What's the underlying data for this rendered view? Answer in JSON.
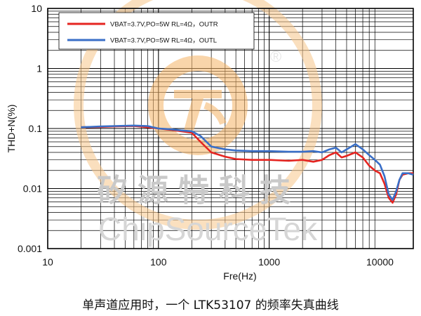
{
  "chart_data": {
    "type": "line",
    "xlabel": "Fre(Hz)",
    "ylabel": "THD+N(%)",
    "xscale": "log",
    "yscale": "log",
    "xlim": [
      10,
      20000
    ],
    "ylim": [
      0.001,
      10
    ],
    "x_ticks": [
      "10",
      "100",
      "1000",
      "10000"
    ],
    "y_ticks": [
      "0.001",
      "0.01",
      "0.1",
      "1",
      "10"
    ],
    "grid": true,
    "legend_position": "top-left",
    "series": [
      {
        "name": "VBAT=3.7V,PO=5W  RL=4Ω，OUTR",
        "color": "#e52521",
        "points": [
          [
            20,
            0.105
          ],
          [
            30,
            0.106
          ],
          [
            40,
            0.108
          ],
          [
            60,
            0.11
          ],
          [
            80,
            0.105
          ],
          [
            100,
            0.1
          ],
          [
            130,
            0.095
          ],
          [
            160,
            0.09
          ],
          [
            200,
            0.085
          ],
          [
            240,
            0.06
          ],
          [
            300,
            0.04
          ],
          [
            400,
            0.034
          ],
          [
            500,
            0.031
          ],
          [
            700,
            0.03
          ],
          [
            1000,
            0.03
          ],
          [
            1500,
            0.029
          ],
          [
            2000,
            0.03
          ],
          [
            2500,
            0.028
          ],
          [
            3000,
            0.03
          ],
          [
            3500,
            0.036
          ],
          [
            4000,
            0.04
          ],
          [
            4500,
            0.033
          ],
          [
            5000,
            0.035
          ],
          [
            6000,
            0.04
          ],
          [
            7000,
            0.033
          ],
          [
            8000,
            0.024
          ],
          [
            9000,
            0.02
          ],
          [
            10000,
            0.018
          ],
          [
            11000,
            0.012
          ],
          [
            12000,
            0.007
          ],
          [
            13000,
            0.0058
          ],
          [
            14000,
            0.008
          ],
          [
            15000,
            0.014
          ],
          [
            16000,
            0.017
          ],
          [
            18000,
            0.018
          ],
          [
            20000,
            0.018
          ]
        ]
      },
      {
        "name": "VBAT=3.7V,PO=5W  RL=4Ω，OUTL",
        "color": "#3a6fc7",
        "points": [
          [
            20,
            0.105
          ],
          [
            30,
            0.108
          ],
          [
            40,
            0.11
          ],
          [
            60,
            0.112
          ],
          [
            80,
            0.11
          ],
          [
            100,
            0.1
          ],
          [
            130,
            0.097
          ],
          [
            160,
            0.093
          ],
          [
            200,
            0.09
          ],
          [
            240,
            0.075
          ],
          [
            300,
            0.05
          ],
          [
            400,
            0.045
          ],
          [
            500,
            0.043
          ],
          [
            700,
            0.042
          ],
          [
            1000,
            0.042
          ],
          [
            1500,
            0.041
          ],
          [
            2000,
            0.041
          ],
          [
            2500,
            0.042
          ],
          [
            3000,
            0.04
          ],
          [
            3500,
            0.045
          ],
          [
            4000,
            0.048
          ],
          [
            4500,
            0.04
          ],
          [
            5000,
            0.045
          ],
          [
            6000,
            0.055
          ],
          [
            7000,
            0.045
          ],
          [
            8000,
            0.036
          ],
          [
            9000,
            0.03
          ],
          [
            10000,
            0.025
          ],
          [
            11000,
            0.016
          ],
          [
            12000,
            0.008
          ],
          [
            13000,
            0.0065
          ],
          [
            14000,
            0.009
          ],
          [
            15000,
            0.014
          ],
          [
            16000,
            0.018
          ],
          [
            18000,
            0.018
          ],
          [
            20000,
            0.017
          ]
        ]
      }
    ]
  },
  "watermark": {
    "chinese": "矽源特科技",
    "english": "ChipSourceTek",
    "registered": "®",
    "logo_color": "#f5b366"
  },
  "caption": "单声道应用时，一个 LTK53107 的频率失真曲线"
}
